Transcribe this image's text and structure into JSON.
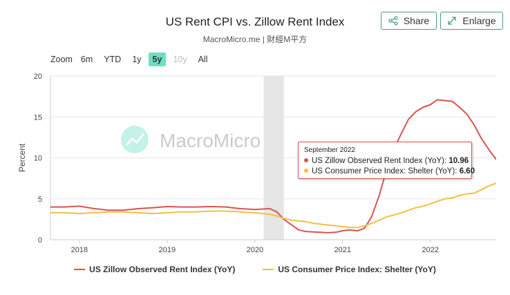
{
  "header": {
    "title": "US Rent CPI vs. Zillow Rent Index",
    "subtitle": "MacroMicro.me | 財經M平方",
    "share_label": "Share",
    "enlarge_label": "Enlarge"
  },
  "zoom": {
    "label": "Zoom",
    "options": [
      "6m",
      "YTD",
      "1y",
      "5y",
      "10y",
      "All"
    ],
    "active": "5y",
    "disabled": [
      "10y"
    ]
  },
  "watermark": "MacroMicro",
  "colors": {
    "zillow": "#d9534f",
    "cpi": "#f0c040",
    "accent": "#6de0c4",
    "shade": "#e6e6e6"
  },
  "tooltip": {
    "date": "September 2022",
    "zillow_label": "US Zillow Observed Rent Index (YoY):",
    "zillow_value": "10.96",
    "cpi_label": "US Consumer Price Index: Shelter (YoY):",
    "cpi_value": "6.60"
  },
  "chart_data": {
    "type": "line",
    "title": "US Rent CPI vs. Zillow Rent Index",
    "ylabel": "Percent",
    "ylim": [
      0,
      20
    ],
    "yticks": [
      "0",
      "5",
      "10",
      "15",
      "20"
    ],
    "xticks": [
      "2018",
      "2019",
      "2020",
      "2021",
      "2022"
    ],
    "xlim": [
      2017.67,
      2022.75
    ],
    "shaded_range": [
      2020.1,
      2020.33
    ],
    "legend": [
      "US Zillow Observed Rent Index (YoY)",
      "US Consumer Price Index: Shelter (YoY)"
    ],
    "series": [
      {
        "name": "US Zillow Observed Rent Index (YoY)",
        "x": [
          2017.67,
          2017.83,
          2018.0,
          2018.17,
          2018.33,
          2018.5,
          2018.67,
          2018.83,
          2019.0,
          2019.17,
          2019.33,
          2019.5,
          2019.67,
          2019.83,
          2020.0,
          2020.17,
          2020.25,
          2020.33,
          2020.42,
          2020.5,
          2020.58,
          2020.67,
          2020.75,
          2020.83,
          2020.92,
          2021.0,
          2021.08,
          2021.17,
          2021.25,
          2021.33,
          2021.42,
          2021.5,
          2021.58,
          2021.67,
          2021.75,
          2021.83,
          2021.92,
          2022.0,
          2022.08,
          2022.17,
          2022.25,
          2022.33,
          2022.42,
          2022.5,
          2022.58,
          2022.67,
          2022.75
        ],
        "values": [
          4.0,
          4.0,
          4.1,
          3.8,
          3.6,
          3.6,
          3.8,
          3.9,
          4.05,
          4.0,
          4.0,
          4.05,
          4.0,
          3.8,
          3.7,
          3.8,
          3.4,
          2.5,
          1.8,
          1.2,
          1.0,
          0.95,
          0.9,
          0.85,
          0.9,
          1.1,
          1.2,
          1.1,
          1.4,
          2.8,
          5.5,
          8.5,
          11.0,
          13.0,
          14.7,
          15.6,
          16.2,
          16.5,
          17.1,
          17.0,
          16.9,
          16.2,
          15.3,
          14.0,
          12.4,
          10.96,
          9.8
        ]
      },
      {
        "name": "US Consumer Price Index: Shelter (YoY)",
        "x": [
          2017.67,
          2017.83,
          2018.0,
          2018.17,
          2018.33,
          2018.5,
          2018.67,
          2018.83,
          2019.0,
          2019.17,
          2019.33,
          2019.5,
          2019.67,
          2019.83,
          2020.0,
          2020.17,
          2020.25,
          2020.33,
          2020.42,
          2020.5,
          2020.58,
          2020.67,
          2020.75,
          2020.83,
          2020.92,
          2021.0,
          2021.08,
          2021.17,
          2021.25,
          2021.33,
          2021.42,
          2021.5,
          2021.58,
          2021.67,
          2021.75,
          2021.83,
          2021.92,
          2022.0,
          2022.08,
          2022.17,
          2022.25,
          2022.33,
          2022.42,
          2022.5,
          2022.58,
          2022.67,
          2022.75
        ],
        "values": [
          3.3,
          3.3,
          3.2,
          3.3,
          3.4,
          3.4,
          3.3,
          3.2,
          3.3,
          3.4,
          3.4,
          3.5,
          3.5,
          3.4,
          3.3,
          3.1,
          2.9,
          2.6,
          2.4,
          2.3,
          2.2,
          2.0,
          1.9,
          1.8,
          1.7,
          1.6,
          1.5,
          1.5,
          1.7,
          2.0,
          2.4,
          2.8,
          3.0,
          3.3,
          3.6,
          3.9,
          4.1,
          4.4,
          4.7,
          5.0,
          5.1,
          5.4,
          5.6,
          5.7,
          6.1,
          6.6,
          6.9
        ]
      }
    ]
  }
}
